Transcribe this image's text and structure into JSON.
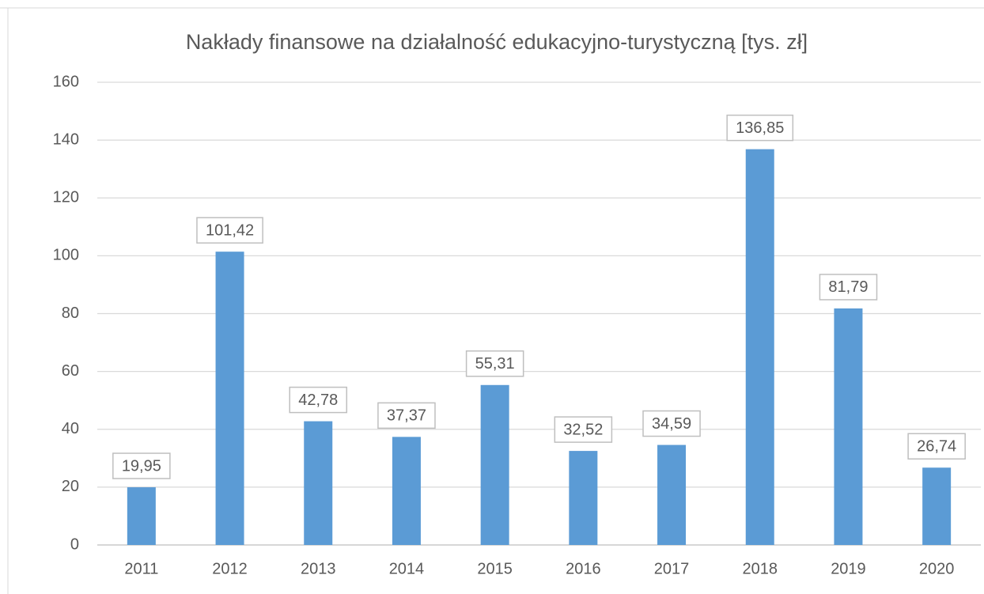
{
  "chart_data": {
    "type": "bar",
    "title": "Nakłady finansowe na działalność edukacyjno-turystyczną [tys. zł]",
    "categories": [
      "2011",
      "2012",
      "2013",
      "2014",
      "2015",
      "2016",
      "2017",
      "2018",
      "2019",
      "2020"
    ],
    "values": [
      19.95,
      101.42,
      42.78,
      37.37,
      55.31,
      32.52,
      34.59,
      136.85,
      81.79,
      26.74
    ],
    "value_labels": [
      "19,95",
      "101,42",
      "42,78",
      "37,37",
      "55,31",
      "32,52",
      "34,59",
      "136,85",
      "81,79",
      "26,74"
    ],
    "color": "#5b9bd5",
    "ylim": [
      0,
      160
    ],
    "yticks": [
      0,
      20,
      40,
      60,
      80,
      100,
      120,
      140,
      160
    ],
    "grid": true
  }
}
